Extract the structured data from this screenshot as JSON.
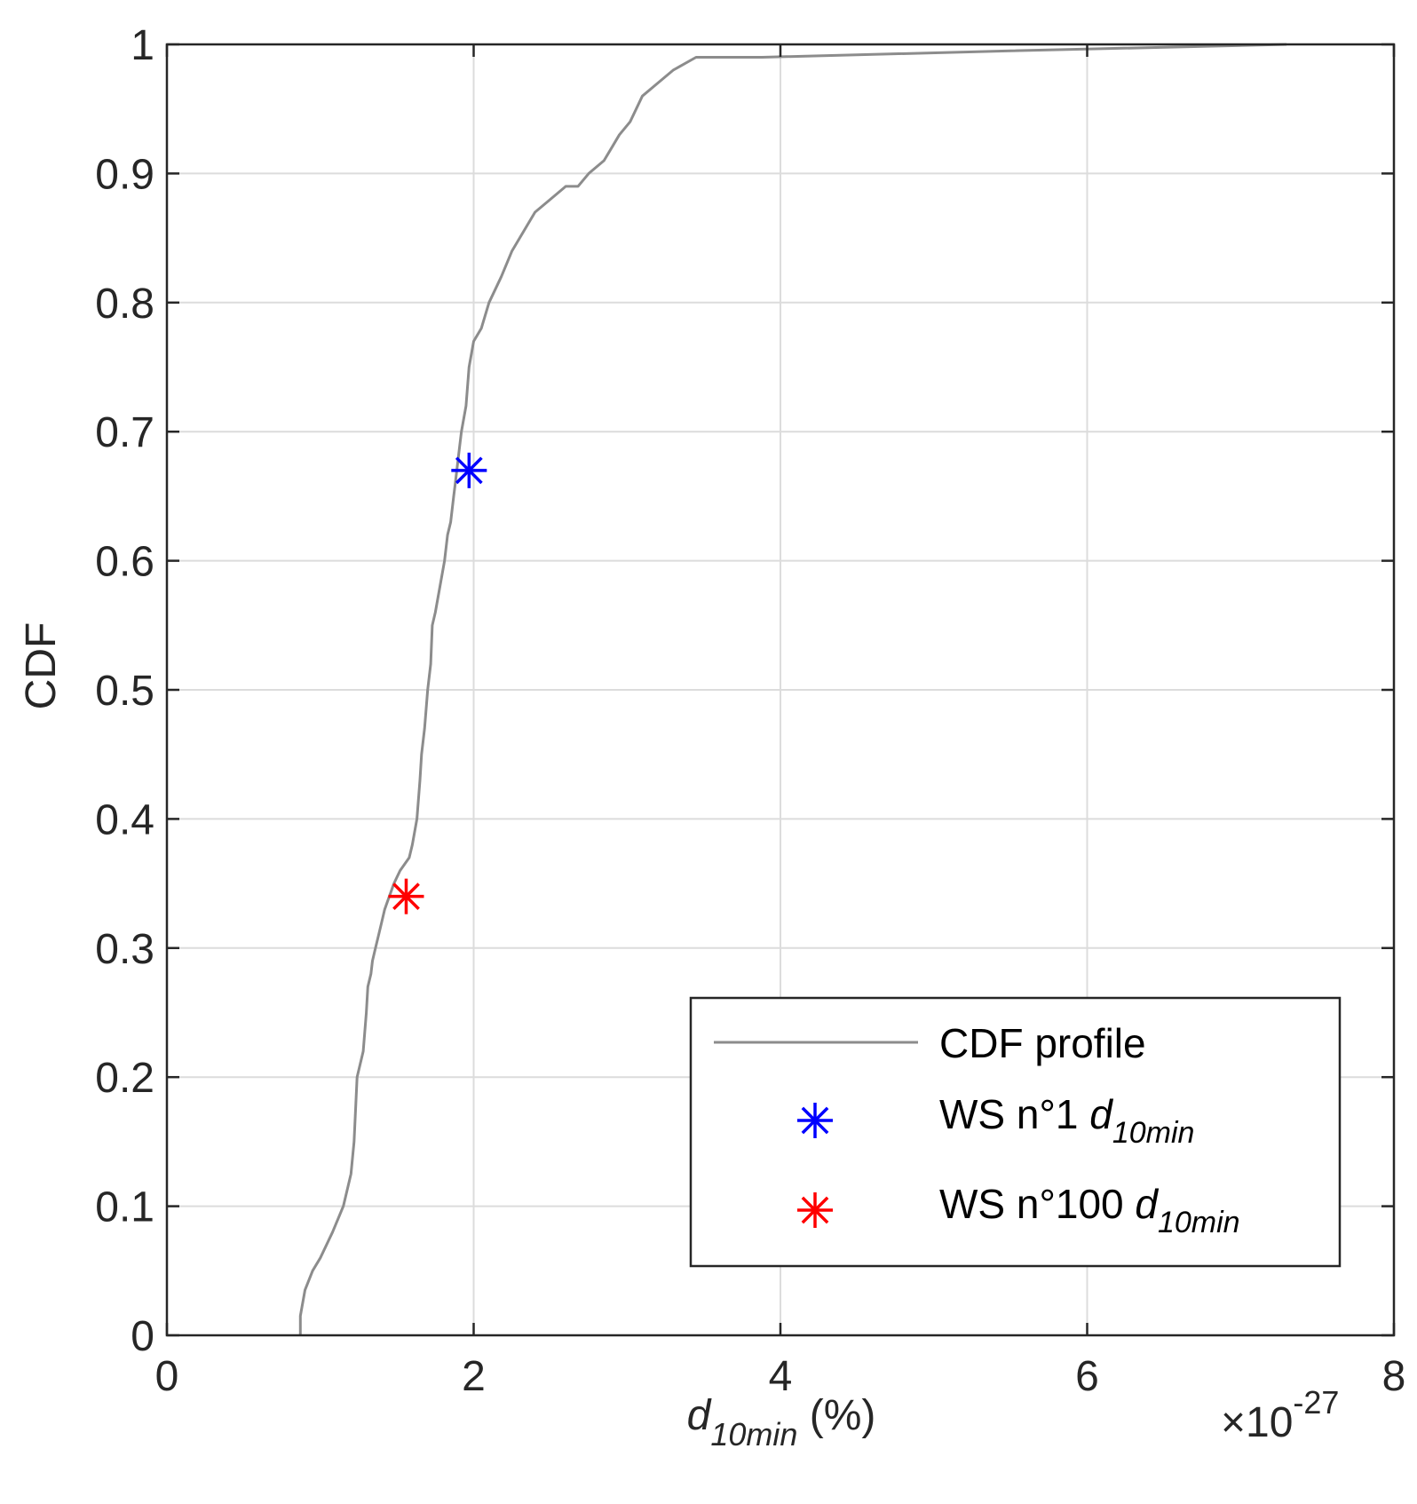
{
  "chart_data": {
    "type": "line",
    "ylabel": "CDF",
    "xlabel_main": "d",
    "xlabel_sub": "10min",
    "xlabel_suffix": " (%)",
    "exponent_prefix": "×10",
    "exponent_value": "-27",
    "xlim": [
      0,
      8
    ],
    "ylim": [
      0,
      1
    ],
    "x_ticks": [
      0,
      2,
      4,
      6,
      8
    ],
    "x_tick_labels": [
      "0",
      "2",
      "4",
      "6",
      "8"
    ],
    "y_ticks": [
      0,
      0.1,
      0.2,
      0.3,
      0.4,
      0.5,
      0.6,
      0.7,
      0.8,
      0.9,
      1
    ],
    "y_tick_labels": [
      "0",
      "0.1",
      "0.2",
      "0.3",
      "0.4",
      "0.5",
      "0.6",
      "0.7",
      "0.8",
      "0.9",
      "1"
    ],
    "grid": true,
    "legend_position": "bottom-right",
    "series": [
      {
        "name": "CDF profile",
        "kind": "line",
        "color": "#8c8c8c",
        "x": [
          0.87,
          0.87,
          0.9,
          0.95,
          1.0,
          1.08,
          1.15,
          1.2,
          1.22,
          1.24,
          1.28,
          1.3,
          1.31,
          1.33,
          1.34,
          1.36,
          1.38,
          1.4,
          1.42,
          1.45,
          1.48,
          1.52,
          1.58,
          1.6,
          1.63,
          1.65,
          1.66,
          1.68,
          1.7,
          1.72,
          1.73,
          1.75,
          1.78,
          1.81,
          1.83,
          1.85,
          1.86,
          1.87,
          1.88,
          1.9,
          1.92,
          1.95,
          1.97,
          2.0,
          2.05,
          2.1,
          2.18,
          2.25,
          2.3,
          2.4,
          2.5,
          2.6,
          2.68,
          2.75,
          2.85,
          2.9,
          2.95,
          3.02,
          3.1,
          3.2,
          3.3,
          3.45,
          3.6,
          3.88,
          5.5,
          7.3
        ],
        "y": [
          0,
          0.015,
          0.035,
          0.05,
          0.06,
          0.08,
          0.1,
          0.125,
          0.15,
          0.2,
          0.22,
          0.25,
          0.27,
          0.28,
          0.29,
          0.3,
          0.31,
          0.32,
          0.33,
          0.34,
          0.35,
          0.36,
          0.37,
          0.38,
          0.4,
          0.43,
          0.45,
          0.47,
          0.5,
          0.52,
          0.55,
          0.56,
          0.58,
          0.6,
          0.62,
          0.63,
          0.64,
          0.65,
          0.66,
          0.68,
          0.7,
          0.72,
          0.75,
          0.77,
          0.78,
          0.8,
          0.82,
          0.84,
          0.85,
          0.87,
          0.88,
          0.89,
          0.89,
          0.9,
          0.91,
          0.92,
          0.93,
          0.94,
          0.96,
          0.97,
          0.98,
          0.99,
          0.99,
          0.99,
          0.995,
          1.0
        ]
      },
      {
        "name": "WS n°1",
        "name_sub": "10min",
        "name_italic": "d",
        "kind": "marker",
        "marker": "asterisk",
        "color": "#0000ff",
        "x": [
          1.97
        ],
        "y": [
          0.67
        ]
      },
      {
        "name": "WS n°100",
        "name_sub": "10min",
        "name_italic": "d",
        "kind": "marker",
        "marker": "asterisk",
        "color": "#ff0000",
        "x": [
          1.56
        ],
        "y": [
          0.34
        ]
      }
    ]
  }
}
